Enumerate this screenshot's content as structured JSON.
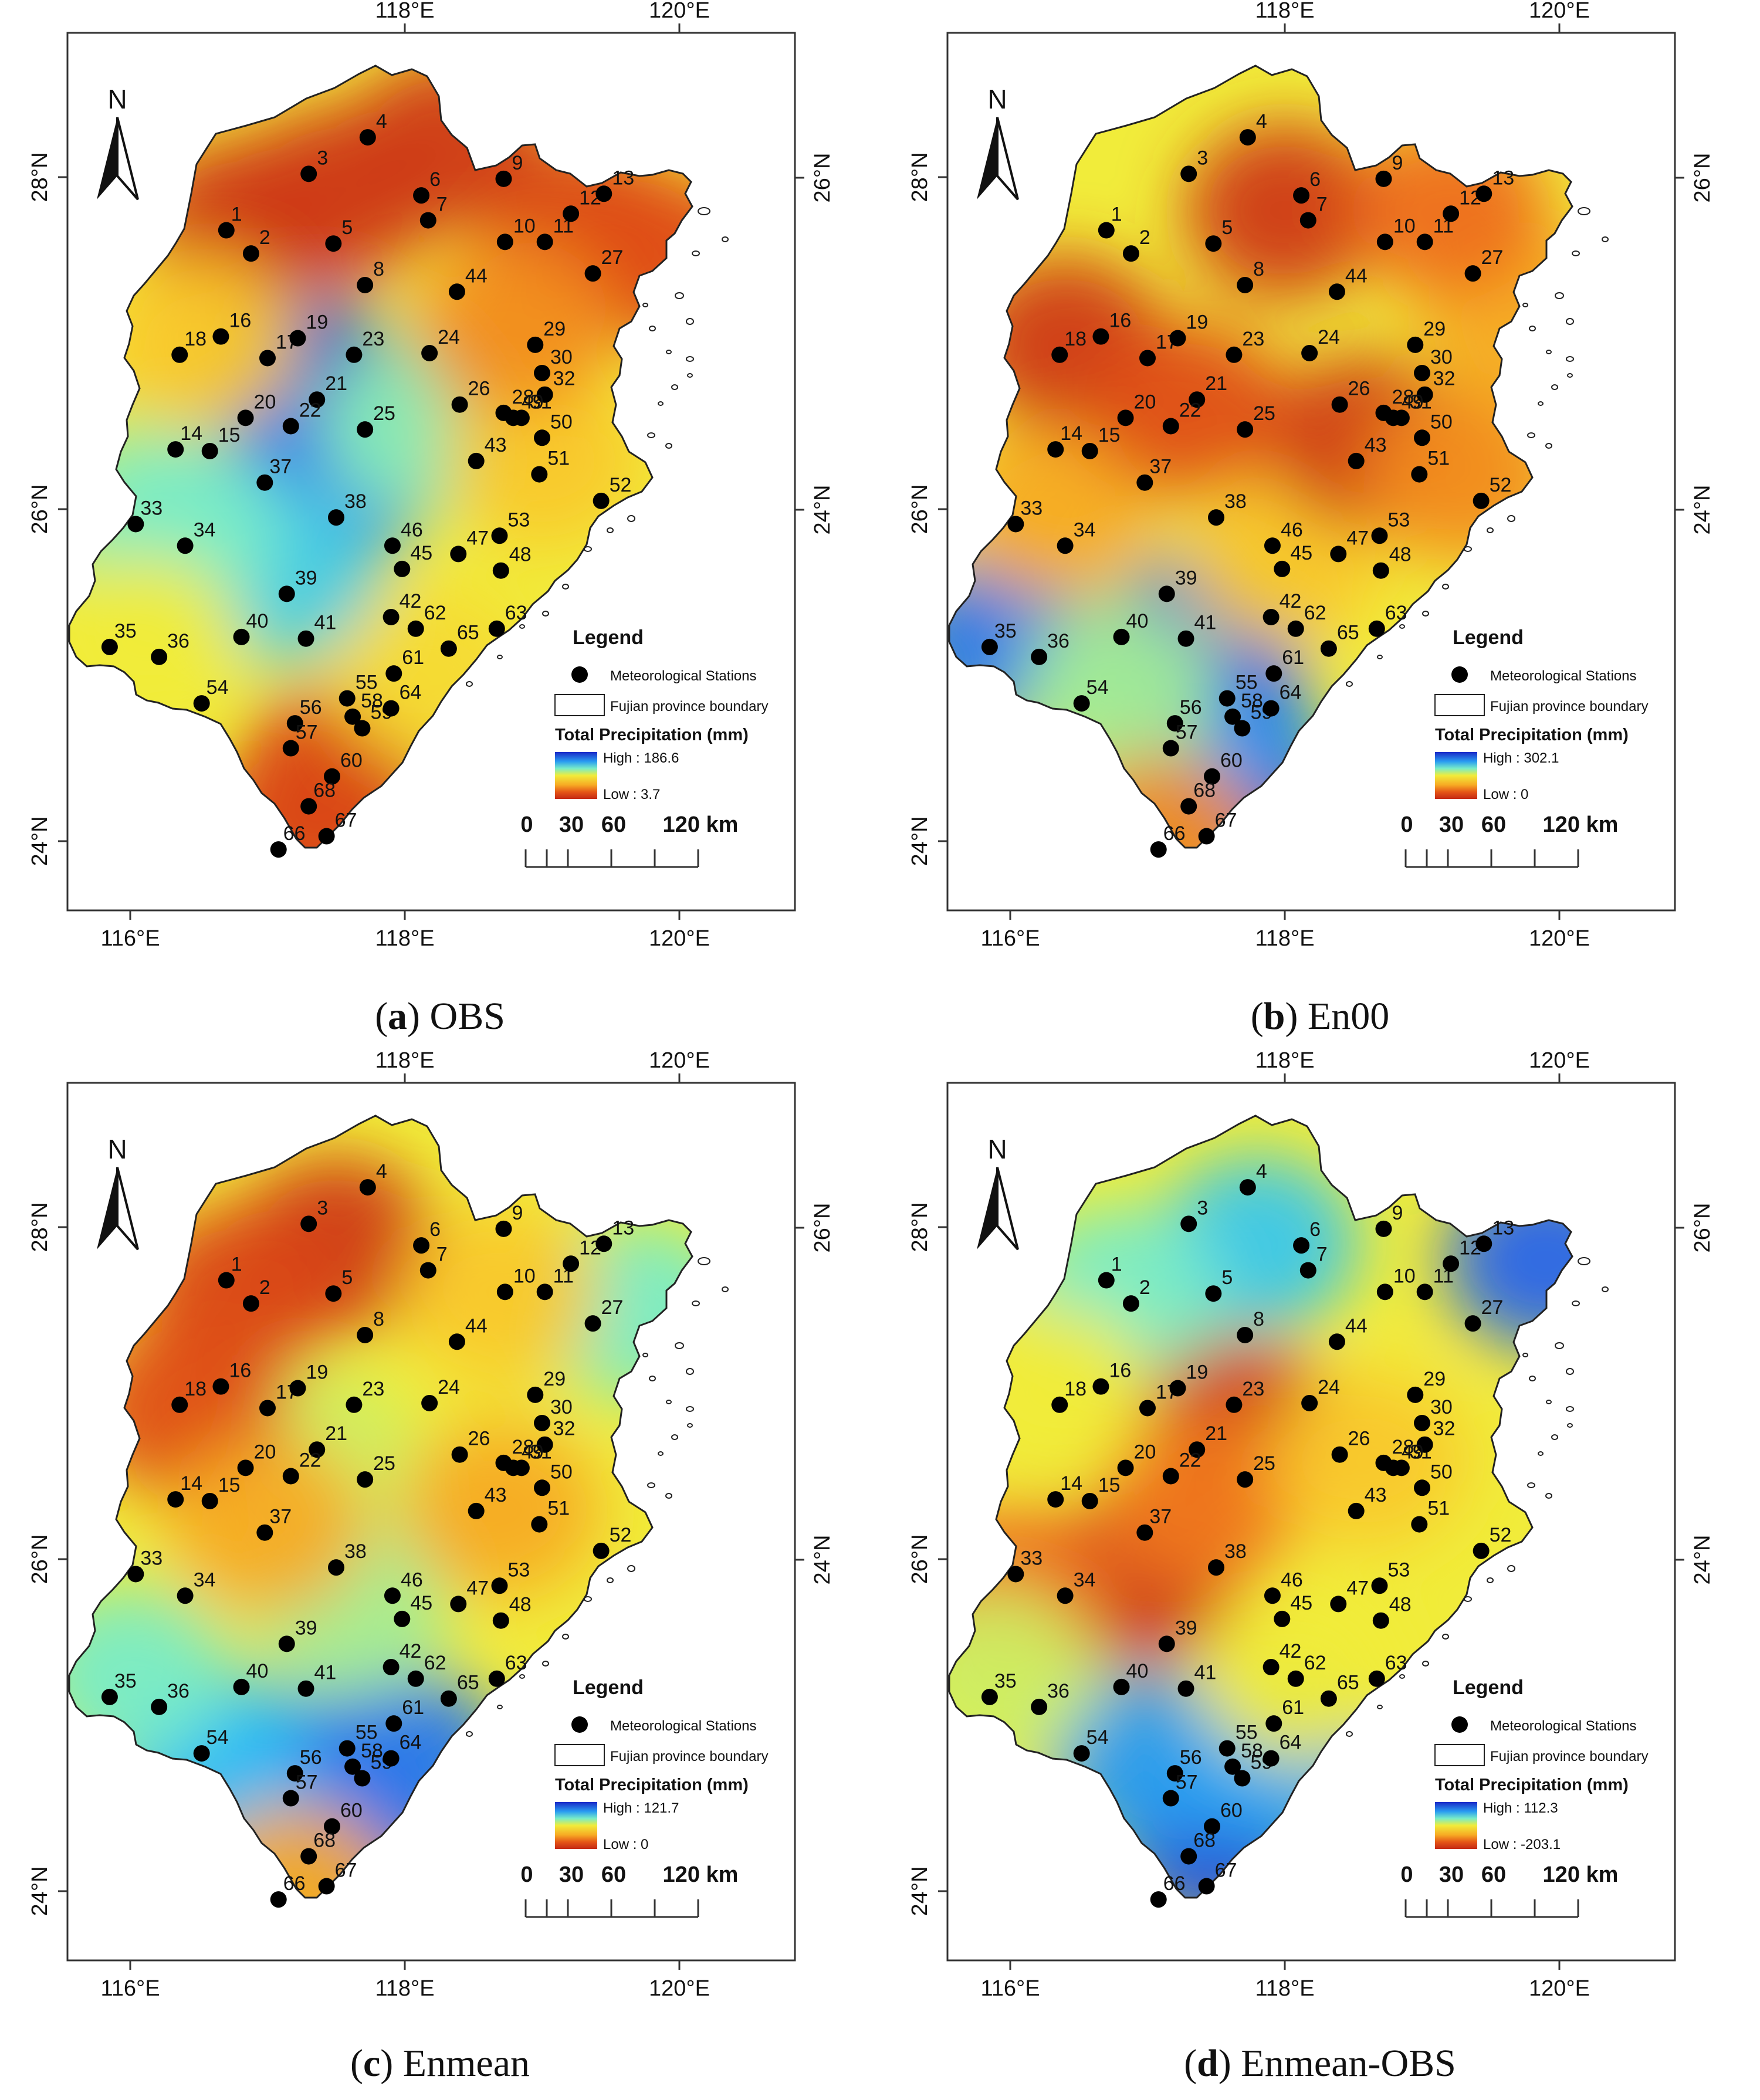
{
  "panels": [
    {
      "id": "a",
      "caption_letter": "a",
      "caption_text": "OBS",
      "legend": {
        "high_label": "High : 186.6",
        "low_label": "Low : 3.7"
      },
      "colormap": "blue_high",
      "field": [
        {
          "lat": 26.75,
          "lon": 117.3,
          "v": 0.95
        },
        {
          "lat": 26.1,
          "lon": 117.2,
          "v": 0.95
        },
        {
          "lat": 26.2,
          "lon": 117.5,
          "v": 0.85
        },
        {
          "lat": 25.6,
          "lon": 117.1,
          "v": 0.7
        },
        {
          "lat": 26.0,
          "lon": 116.05,
          "v": 0.55
        },
        {
          "lat": 25.9,
          "lon": 116.4,
          "v": 0.6
        },
        {
          "lat": 26.5,
          "lon": 118.1,
          "v": 0.58
        },
        {
          "lat": 27.9,
          "lon": 117.5,
          "v": 0.05
        },
        {
          "lat": 27.7,
          "lon": 116.8,
          "v": 0.05
        },
        {
          "lat": 28.2,
          "lon": 118.3,
          "v": 0.05
        },
        {
          "lat": 27.7,
          "lon": 119.3,
          "v": 0.1
        },
        {
          "lat": 27.5,
          "lon": 119.9,
          "v": 0.12
        },
        {
          "lat": 24.4,
          "lon": 117.5,
          "v": 0.1
        },
        {
          "lat": 24.1,
          "lon": 117.3,
          "v": 0.1
        },
        {
          "lat": 25.0,
          "lon": 118.2,
          "v": 0.4
        },
        {
          "lat": 25.2,
          "lon": 116.1,
          "v": 0.45
        },
        {
          "lat": 26.3,
          "lon": 119.0,
          "v": 0.35
        },
        {
          "lat": 27.1,
          "lon": 118.8,
          "v": 0.25
        },
        {
          "lat": 27.0,
          "lon": 116.5,
          "v": 0.35
        }
      ]
    },
    {
      "id": "b",
      "caption_letter": "b",
      "caption_text": "En00",
      "legend": {
        "high_label": "High : 302.1",
        "low_label": "Low : 0"
      },
      "colormap": "blue_high",
      "field": [
        {
          "lat": 24.4,
          "lon": 117.6,
          "v": 0.98
        },
        {
          "lat": 24.7,
          "lon": 117.5,
          "v": 0.8
        },
        {
          "lat": 25.2,
          "lon": 117.4,
          "v": 0.9
        },
        {
          "lat": 25.2,
          "lon": 115.9,
          "v": 0.85
        },
        {
          "lat": 24.9,
          "lon": 116.8,
          "v": 0.55
        },
        {
          "lat": 24.0,
          "lon": 117.1,
          "v": 0.25
        },
        {
          "lat": 25.7,
          "lon": 118.0,
          "v": 0.35
        },
        {
          "lat": 26.0,
          "lon": 116.3,
          "v": 0.3
        },
        {
          "lat": 27.8,
          "lon": 118.0,
          "v": 0.05
        },
        {
          "lat": 27.0,
          "lon": 116.4,
          "v": 0.05
        },
        {
          "lat": 26.4,
          "lon": 118.6,
          "v": 0.05
        },
        {
          "lat": 26.6,
          "lon": 117.3,
          "v": 0.12
        },
        {
          "lat": 27.2,
          "lon": 119.7,
          "v": 0.3
        },
        {
          "lat": 26.2,
          "lon": 119.3,
          "v": 0.25
        },
        {
          "lat": 27.8,
          "lon": 119.2,
          "v": 0.2
        }
      ]
    },
    {
      "id": "c",
      "caption_letter": "c",
      "caption_text": "Enmean",
      "legend": {
        "high_label": "High : 121.7",
        "low_label": "Low : 0"
      },
      "colormap": "blue_high",
      "field": [
        {
          "lat": 24.4,
          "lon": 117.6,
          "v": 0.95
        },
        {
          "lat": 24.7,
          "lon": 117.0,
          "v": 0.85
        },
        {
          "lat": 24.8,
          "lon": 116.6,
          "v": 0.75
        },
        {
          "lat": 24.8,
          "lon": 118.0,
          "v": 0.85
        },
        {
          "lat": 25.3,
          "lon": 116.0,
          "v": 0.6
        },
        {
          "lat": 27.5,
          "lon": 119.7,
          "v": 0.6
        },
        {
          "lat": 26.6,
          "lon": 117.4,
          "v": 0.5
        },
        {
          "lat": 25.7,
          "lon": 117.6,
          "v": 0.55
        },
        {
          "lat": 27.9,
          "lon": 117.5,
          "v": 0.05
        },
        {
          "lat": 27.6,
          "lon": 116.8,
          "v": 0.1
        },
        {
          "lat": 26.9,
          "lon": 116.4,
          "v": 0.12
        },
        {
          "lat": 26.2,
          "lon": 117.0,
          "v": 0.3
        },
        {
          "lat": 26.3,
          "lon": 118.7,
          "v": 0.3
        },
        {
          "lat": 27.6,
          "lon": 118.7,
          "v": 0.35
        },
        {
          "lat": 24.0,
          "lon": 117.2,
          "v": 0.3
        }
      ]
    },
    {
      "id": "d",
      "caption_letter": "d",
      "caption_text": "Enmean-OBS",
      "legend": {
        "high_label": "High : 112.3",
        "low_label": "Low : -203.1"
      },
      "colormap": "blue_high",
      "field": [
        {
          "lat": 26.8,
          "lon": 117.65,
          "v": 0.05
        },
        {
          "lat": 25.9,
          "lon": 116.95,
          "v": 0.03
        },
        {
          "lat": 26.35,
          "lon": 117.4,
          "v": 0.22
        },
        {
          "lat": 25.8,
          "lon": 116.0,
          "v": 0.2
        },
        {
          "lat": 24.3,
          "lon": 117.5,
          "v": 0.92
        },
        {
          "lat": 24.8,
          "lon": 117.0,
          "v": 0.8
        },
        {
          "lat": 24.8,
          "lon": 118.0,
          "v": 0.78
        },
        {
          "lat": 27.8,
          "lon": 119.9,
          "v": 0.88
        },
        {
          "lat": 27.9,
          "lon": 117.8,
          "v": 0.72
        },
        {
          "lat": 27.6,
          "lon": 116.8,
          "v": 0.6
        },
        {
          "lat": 26.6,
          "lon": 118.6,
          "v": 0.35
        },
        {
          "lat": 27.0,
          "lon": 116.3,
          "v": 0.45
        },
        {
          "lat": 25.3,
          "lon": 118.1,
          "v": 0.45
        },
        {
          "lat": 25.3,
          "lon": 115.9,
          "v": 0.5
        }
      ]
    }
  ],
  "map_common": {
    "north_label": "N",
    "top_axis_labels": [
      "118°E",
      "120°E"
    ],
    "bottom_axis_labels": [
      "116°E",
      "118°E",
      "120°E"
    ],
    "left_axis_labels": [
      "28°N",
      "26°N",
      "24°N"
    ],
    "right_axis_labels": [
      "26°N",
      "24°N"
    ],
    "legend_title": "Legend",
    "legend_stations_label": "Meteorological Stations",
    "legend_boundary_label": "Fujian province boundary",
    "legend_precip_title": "Total Precipitation (mm)",
    "scale_ticks": [
      "0",
      "30",
      "60",
      "120 km"
    ]
  },
  "stations": [
    {
      "id": "1",
      "lon": 116.7,
      "lat": 27.68
    },
    {
      "id": "2",
      "lon": 116.88,
      "lat": 27.54
    },
    {
      "id": "3",
      "lon": 117.3,
      "lat": 28.02
    },
    {
      "id": "4",
      "lon": 117.73,
      "lat": 28.24
    },
    {
      "id": "5",
      "lon": 117.48,
      "lat": 27.6
    },
    {
      "id": "6",
      "lon": 118.12,
      "lat": 27.89
    },
    {
      "id": "7",
      "lon": 118.17,
      "lat": 27.74
    },
    {
      "id": "8",
      "lon": 117.71,
      "lat": 27.35
    },
    {
      "id": "9",
      "lon": 118.72,
      "lat": 27.99
    },
    {
      "id": "10",
      "lon": 118.73,
      "lat": 27.61
    },
    {
      "id": "11",
      "lon": 119.02,
      "lat": 27.61
    },
    {
      "id": "12",
      "lon": 119.21,
      "lat": 27.78
    },
    {
      "id": "13",
      "lon": 119.45,
      "lat": 27.9
    },
    {
      "id": "14",
      "lon": 116.33,
      "lat": 26.36
    },
    {
      "id": "15",
      "lon": 116.58,
      "lat": 26.35
    },
    {
      "id": "16",
      "lon": 116.66,
      "lat": 27.04
    },
    {
      "id": "17",
      "lon": 117.0,
      "lat": 26.91
    },
    {
      "id": "18",
      "lon": 116.36,
      "lat": 26.93
    },
    {
      "id": "19",
      "lon": 117.22,
      "lat": 27.03
    },
    {
      "id": "20",
      "lon": 116.84,
      "lat": 26.55
    },
    {
      "id": "21",
      "lon": 117.36,
      "lat": 26.66
    },
    {
      "id": "22",
      "lon": 117.17,
      "lat": 26.5
    },
    {
      "id": "23",
      "lon": 117.63,
      "lat": 26.93
    },
    {
      "id": "24",
      "lon": 118.18,
      "lat": 26.94
    },
    {
      "id": "25",
      "lon": 117.71,
      "lat": 26.48
    },
    {
      "id": "26",
      "lon": 118.4,
      "lat": 26.63
    },
    {
      "id": "27",
      "lon": 119.37,
      "lat": 27.42
    },
    {
      "id": "28",
      "lon": 118.72,
      "lat": 26.58
    },
    {
      "id": "29",
      "lon": 118.95,
      "lat": 26.99
    },
    {
      "id": "30",
      "lon": 119.0,
      "lat": 26.82
    },
    {
      "id": "31",
      "lon": 118.85,
      "lat": 26.55
    },
    {
      "id": "32",
      "lon": 119.02,
      "lat": 26.69
    },
    {
      "id": "33",
      "lon": 116.04,
      "lat": 25.91
    },
    {
      "id": "34",
      "lon": 116.4,
      "lat": 25.78
    },
    {
      "id": "35",
      "lon": 115.85,
      "lat": 25.17
    },
    {
      "id": "36",
      "lon": 116.21,
      "lat": 25.11
    },
    {
      "id": "37",
      "lon": 116.98,
      "lat": 26.16
    },
    {
      "id": "38",
      "lon": 117.5,
      "lat": 25.95
    },
    {
      "id": "39",
      "lon": 117.14,
      "lat": 25.49
    },
    {
      "id": "40",
      "lon": 116.81,
      "lat": 25.23
    },
    {
      "id": "41",
      "lon": 117.28,
      "lat": 25.22
    },
    {
      "id": "42",
      "lon": 117.9,
      "lat": 25.35
    },
    {
      "id": "43",
      "lon": 118.52,
      "lat": 26.29
    },
    {
      "id": "44",
      "lon": 118.38,
      "lat": 27.31
    },
    {
      "id": "45",
      "lon": 117.98,
      "lat": 25.64
    },
    {
      "id": "46",
      "lon": 117.91,
      "lat": 25.78
    },
    {
      "id": "47",
      "lon": 118.39,
      "lat": 25.73
    },
    {
      "id": "48",
      "lon": 118.7,
      "lat": 25.63
    },
    {
      "id": "49",
      "lon": 118.79,
      "lat": 26.55
    },
    {
      "id": "50",
      "lon": 119.0,
      "lat": 26.43
    },
    {
      "id": "51",
      "lon": 118.98,
      "lat": 26.21
    },
    {
      "id": "52",
      "lon": 119.43,
      "lat": 26.05
    },
    {
      "id": "53",
      "lon": 118.69,
      "lat": 25.84
    },
    {
      "id": "54",
      "lon": 116.52,
      "lat": 24.83
    },
    {
      "id": "55",
      "lon": 117.58,
      "lat": 24.86
    },
    {
      "id": "56",
      "lon": 117.2,
      "lat": 24.71
    },
    {
      "id": "57",
      "lon": 117.17,
      "lat": 24.56
    },
    {
      "id": "58",
      "lon": 117.62,
      "lat": 24.75
    },
    {
      "id": "59",
      "lon": 117.69,
      "lat": 24.68
    },
    {
      "id": "60",
      "lon": 117.47,
      "lat": 24.39
    },
    {
      "id": "61",
      "lon": 117.92,
      "lat": 25.01
    },
    {
      "id": "62",
      "lon": 118.08,
      "lat": 25.28
    },
    {
      "id": "63",
      "lon": 118.67,
      "lat": 25.28
    },
    {
      "id": "64",
      "lon": 117.9,
      "lat": 24.8
    },
    {
      "id": "65",
      "lon": 118.32,
      "lat": 25.16
    },
    {
      "id": "66",
      "lon": 117.08,
      "lat": 23.95
    },
    {
      "id": "67",
      "lon": 117.43,
      "lat": 24.03
    },
    {
      "id": "68",
      "lon": 117.3,
      "lat": 24.21
    }
  ],
  "labels_left": [
    "1",
    "14",
    "18",
    "33",
    "35",
    "37",
    "40",
    "54",
    "56",
    "57",
    "66",
    "68"
  ]
}
